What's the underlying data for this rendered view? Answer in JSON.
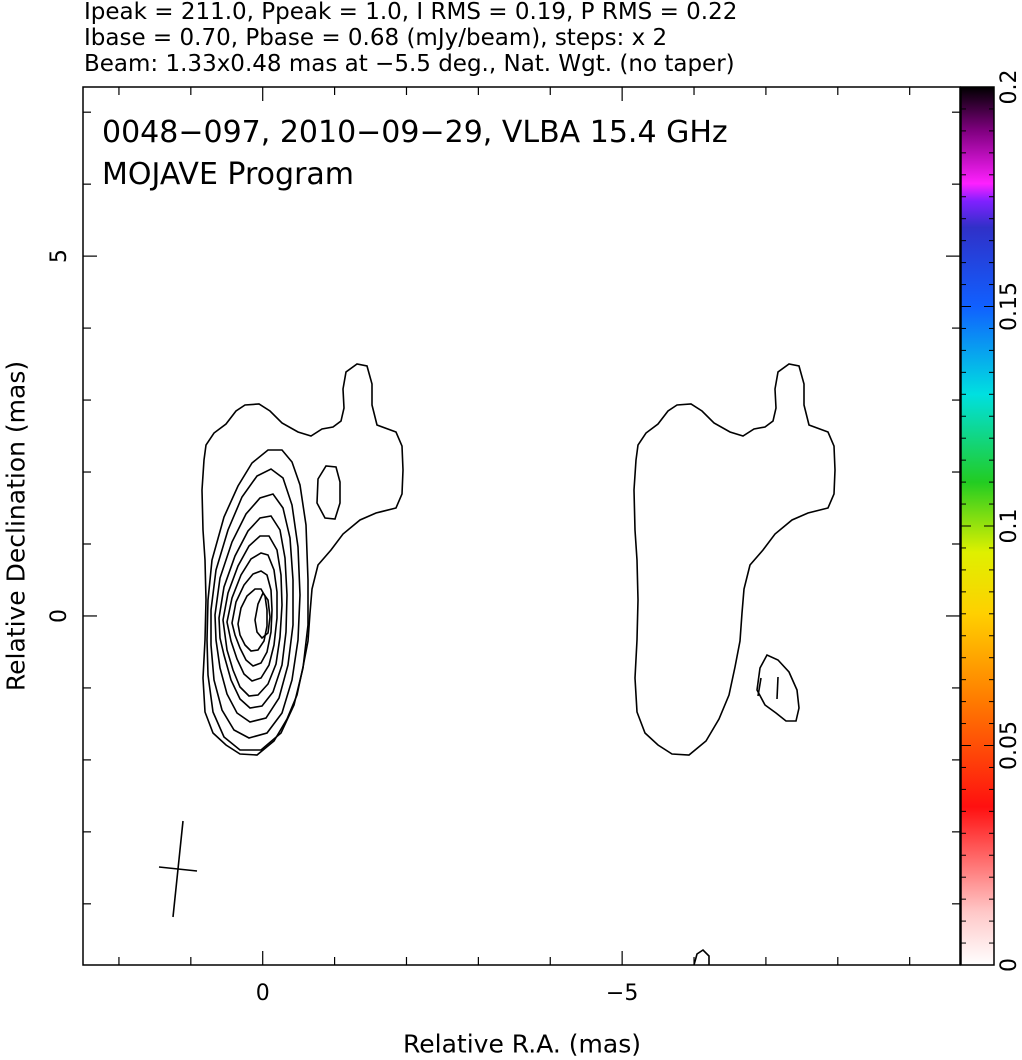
{
  "header": {
    "line1": "Ipeak = 211.0, Ppeak = 1.0, I RMS = 0.19, P RMS = 0.22",
    "line2": "Ibase = 0.70, Pbase = 0.68 (mJy/beam), steps: x 2",
    "line3": "Beam: 1.33x0.48 mas at −5.5 deg., Nat. Wgt. (no taper)"
  },
  "chart_data": {
    "type": "contour",
    "title_lines": [
      "0048−097, 2010−09−29, VLBA 15.4 GHz",
      "MOJAVE Program"
    ],
    "xlabel": "Relative R.A. (mas)",
    "ylabel": "Relative Declination (mas)",
    "xlim": [
      2.5,
      -9.7
    ],
    "ylim": [
      -4.85,
      7.35
    ],
    "x_ticks": [
      {
        "value": 0,
        "label": "0"
      },
      {
        "value": -5,
        "label": "−5"
      }
    ],
    "y_ticks": [
      {
        "value": 0,
        "label": "0"
      },
      {
        "value": 5,
        "label": "5"
      }
    ],
    "colorbar": {
      "range": [
        0,
        0.2
      ],
      "ticks": [
        {
          "value": 0,
          "label": "0"
        },
        {
          "value": 0.05,
          "label": "0.05"
        },
        {
          "value": 0.1,
          "label": "0.1"
        },
        {
          "value": 0.15,
          "label": "0.15"
        },
        {
          "value": 0.2,
          "label": "0.2"
        }
      ]
    },
    "beam": {
      "major_mas": 1.33,
      "minor_mas": 0.48,
      "pa_deg": -5.5
    },
    "peak_position": [
      0,
      0
    ],
    "total_intensity_contours": 9,
    "polarization_contours": 1
  }
}
